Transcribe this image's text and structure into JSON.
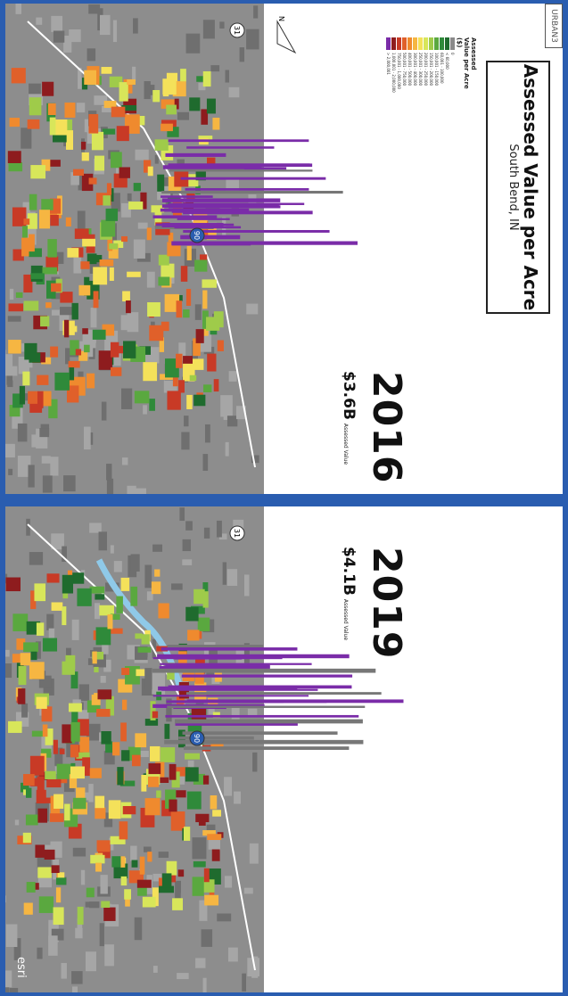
{
  "header": {
    "title": "Assessed Value per Acre",
    "subtitle": "South Bend, IN",
    "logo": "URBAN3"
  },
  "legend": {
    "title": "Assessed Value per Acre ($)",
    "items": [
      {
        "label": "0",
        "color": "#8a8a8a"
      },
      {
        "label": "< 60,000",
        "color": "#1f6b2e"
      },
      {
        "label": "60,001 - 100,000",
        "color": "#2f8a3a"
      },
      {
        "label": "100,001 - 150,000",
        "color": "#5aa83f"
      },
      {
        "label": "150,001 - 200,000",
        "color": "#9fcb4a"
      },
      {
        "label": "200,001 - 250,000",
        "color": "#d8e65a"
      },
      {
        "label": "250,001 - 300,000",
        "color": "#f4e15a"
      },
      {
        "label": "300,001 - 400,000",
        "color": "#f6b642"
      },
      {
        "label": "400,001 - 500,000",
        "color": "#ef8a2e"
      },
      {
        "label": "500,001 - 750,000",
        "color": "#e0602a"
      },
      {
        "label": "750,001 - 1,000,000",
        "color": "#c83a26"
      },
      {
        "label": "1,000,001 - 2,000,000",
        "color": "#8e1c1e"
      },
      {
        "label": "> 2,000,001",
        "color": "#7a2ca8"
      }
    ]
  },
  "compass": "N",
  "panels": [
    {
      "year": "2016",
      "value": "$3.6B",
      "value_label": "Assessed Value",
      "routes": [
        "31",
        "90"
      ]
    },
    {
      "year": "2019",
      "value": "$4.1B",
      "value_label": "Assessed Value",
      "routes": [
        "31",
        "90"
      ],
      "credit": "esri"
    }
  ]
}
